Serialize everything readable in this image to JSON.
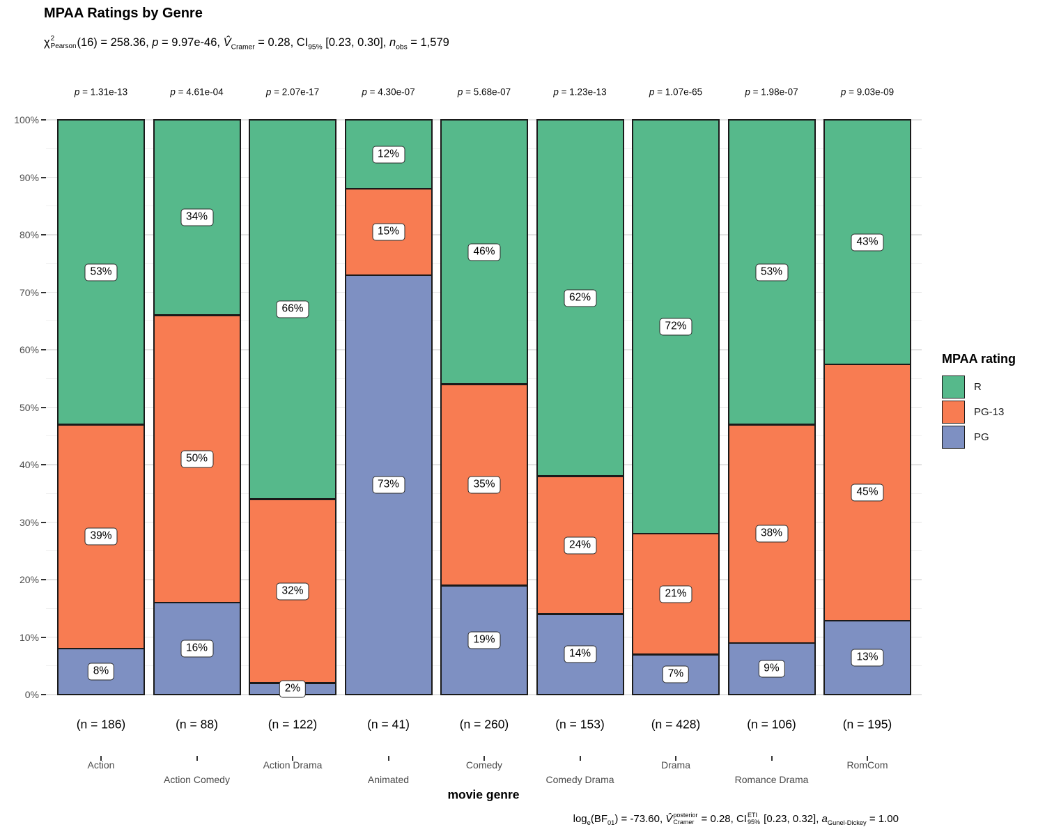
{
  "title": "MPAA Ratings by Genre",
  "subtitle": {
    "chi": "χ",
    "chi_sup": "2",
    "chi_sub": "Pearson",
    "stat": "(16) = 258.36, ",
    "p_sym": "p",
    "p_val": " = 9.97e-46, ",
    "v_sym": "V̂",
    "v_sub": "Cramer",
    "v_val": " = 0.28, ",
    "ci_sym": "CI",
    "ci_sub": "95%",
    "ci_val": " [0.23, 0.30], ",
    "n_sym": "n",
    "n_sub": "obs",
    "n_val": " = 1,579"
  },
  "caption": {
    "log_sym": "log",
    "log_sub": "e",
    "bf_open": "(BF",
    "bf_sub": "01",
    "bf_close": ")",
    "bf_val": " = -73.60, ",
    "v_sym": "V̂",
    "v_sup": "posterior",
    "v_sub": "Cramer",
    "v_val": " = 0.28, ",
    "ci_sym": "CI",
    "ci_sup": "ETI",
    "ci_sub": "95%",
    "ci_val": " [0.23, 0.32], ",
    "a_sym": "a",
    "a_sub": "Gunel-Dickey",
    "a_val": " = 1.00"
  },
  "x_axis_title": "movie genre",
  "legend": {
    "title": "MPAA rating",
    "items": [
      {
        "label": "R",
        "color": "#56B98B"
      },
      {
        "label": "PG-13",
        "color": "#F87C52"
      },
      {
        "label": "PG",
        "color": "#7E90C2"
      }
    ]
  },
  "y_axis": {
    "tick_labels": [
      "0%",
      "10%",
      "20%",
      "30%",
      "40%",
      "50%",
      "60%",
      "70%",
      "80%",
      "90%",
      "100%"
    ]
  },
  "chart_data": {
    "type": "stacked_bar_percent",
    "title": "MPAA Ratings by Genre",
    "xlabel": "movie genre",
    "ylabel": "",
    "ylim": [
      0,
      100
    ],
    "grid": "horizontal major every 10%, minor every 5%",
    "legend_position": "right",
    "categories": [
      "Action",
      "Action Comedy",
      "Action Drama",
      "Animated",
      "Comedy",
      "Comedy Drama",
      "Drama",
      "Romance Drama",
      "RomCom"
    ],
    "n": [
      186,
      88,
      122,
      41,
      260,
      153,
      428,
      106,
      195
    ],
    "n_labels": [
      "(n = 186)",
      "(n = 88)",
      "(n = 122)",
      "(n = 41)",
      "(n = 260)",
      "(n = 153)",
      "(n = 428)",
      "(n = 106)",
      "(n = 195)"
    ],
    "p_symbol": "p",
    "p_eq": " = ",
    "p_values": [
      "1.31e-13",
      "4.61e-04",
      "2.07e-17",
      "4.30e-07",
      "5.68e-07",
      "1.23e-13",
      "1.07e-65",
      "1.98e-07",
      "9.03e-09"
    ],
    "series": [
      {
        "name": "PG",
        "color": "#7E90C2",
        "values": [
          8,
          16,
          2,
          73,
          19,
          14,
          7,
          9,
          13
        ],
        "labels": [
          "8%",
          "16%",
          "2%",
          "73%",
          "19%",
          "14%",
          "7%",
          "9%",
          "13%"
        ]
      },
      {
        "name": "PG-13",
        "color": "#F87C52",
        "values": [
          39,
          50,
          32,
          15,
          35,
          24,
          21,
          38,
          45
        ],
        "labels": [
          "39%",
          "50%",
          "32%",
          "15%",
          "35%",
          "24%",
          "21%",
          "38%",
          "45%"
        ]
      },
      {
        "name": "R",
        "color": "#56B98B",
        "values": [
          53,
          34,
          66,
          12,
          46,
          62,
          72,
          53,
          43
        ],
        "labels": [
          "53%",
          "34%",
          "66%",
          "12%",
          "46%",
          "62%",
          "72%",
          "53%",
          "43%"
        ]
      }
    ]
  }
}
